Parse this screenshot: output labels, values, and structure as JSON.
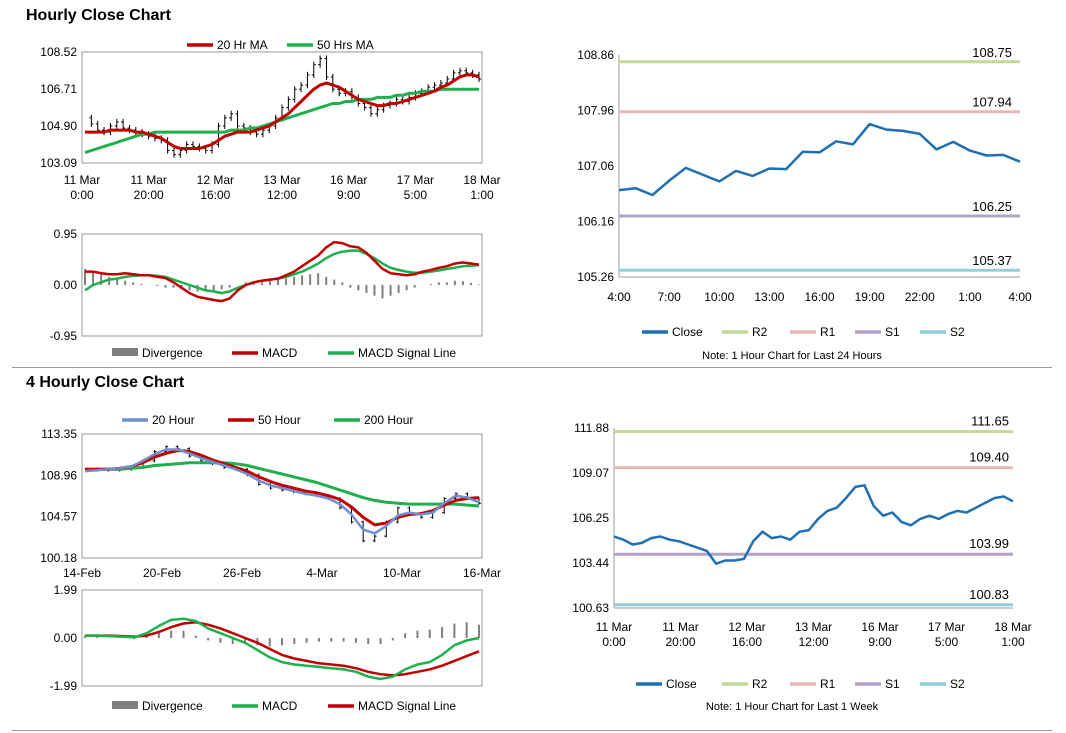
{
  "sections": {
    "hourly_title": "Hourly Close Chart",
    "four_hourly_title": "4 Hourly Close Chart"
  },
  "colors": {
    "red": "#c00000",
    "green": "#1fb04d",
    "blue_ma": "#6f8fcf",
    "blue_close": "#1f6fb2",
    "r2": "#c4d79b",
    "r1": "#e6b9b8",
    "s1": "#b3a2c7",
    "s2": "#92cddc",
    "divergence": "#7f7f7f"
  },
  "chart_data": [
    {
      "id": "hourly-price",
      "type": "line",
      "title": "",
      "ylim": [
        103.09,
        108.52
      ],
      "yticks": [
        "108.52",
        "106.71",
        "104.90",
        "103.09"
      ],
      "xticks": [
        [
          "11 Mar",
          "0:00"
        ],
        [
          "11 Mar",
          "20:00"
        ],
        [
          "12 Mar",
          "16:00"
        ],
        [
          "13 Mar",
          "12:00"
        ],
        [
          "16 Mar",
          "9:00"
        ],
        [
          "17 Mar",
          "5:00"
        ],
        [
          "18 Mar",
          "1:00"
        ]
      ],
      "legend": [
        "20 Hr MA",
        "50 Hrs MA"
      ],
      "price": [
        105.3,
        105.0,
        104.7,
        104.6,
        104.9,
        105.1,
        104.8,
        104.7,
        104.6,
        104.5,
        104.4,
        104.3,
        104.2,
        103.7,
        103.5,
        103.7,
        104.0,
        103.9,
        103.8,
        103.7,
        104.0,
        104.9,
        105.3,
        105.5,
        104.9,
        104.8,
        104.6,
        104.5,
        104.7,
        104.9,
        105.3,
        105.8,
        106.2,
        106.7,
        106.9,
        107.4,
        107.9,
        108.2,
        107.3,
        106.7,
        106.5,
        106.6,
        106.3,
        106.0,
        105.8,
        105.5,
        105.7,
        105.9,
        106.0,
        106.2,
        106.1,
        106.3,
        106.5,
        106.6,
        106.8,
        106.9,
        107.0,
        107.2,
        107.5,
        107.6,
        107.5,
        107.4,
        107.2
      ],
      "ma20": [
        104.6,
        104.6,
        104.6,
        104.6,
        104.7,
        104.7,
        104.7,
        104.7,
        104.6,
        104.6,
        104.5,
        104.4,
        104.3,
        104.1,
        103.9,
        103.8,
        103.8,
        103.8,
        103.8,
        103.9,
        104.0,
        104.2,
        104.4,
        104.5,
        104.6,
        104.6,
        104.6,
        104.7,
        104.8,
        104.9,
        105.1,
        105.3,
        105.5,
        105.8,
        106.1,
        106.4,
        106.7,
        106.9,
        107.0,
        106.9,
        106.8,
        106.6,
        106.4,
        106.2,
        106.1,
        106.0,
        105.9,
        105.9,
        106.0,
        106.0,
        106.1,
        106.2,
        106.3,
        106.4,
        106.5,
        106.6,
        106.8,
        106.9,
        107.1,
        107.3,
        107.4,
        107.4,
        107.3
      ],
      "ma50": [
        103.6,
        103.7,
        103.8,
        103.9,
        104.0,
        104.1,
        104.2,
        104.3,
        104.4,
        104.5,
        104.5,
        104.6,
        104.6,
        104.6,
        104.6,
        104.6,
        104.6,
        104.6,
        104.6,
        104.6,
        104.6,
        104.6,
        104.6,
        104.7,
        104.7,
        104.7,
        104.8,
        104.8,
        104.9,
        105.0,
        105.1,
        105.2,
        105.3,
        105.4,
        105.5,
        105.6,
        105.7,
        105.8,
        105.9,
        106.0,
        106.0,
        106.1,
        106.1,
        106.2,
        106.2,
        106.2,
        106.3,
        106.3,
        106.3,
        106.4,
        106.4,
        106.5,
        106.5,
        106.6,
        106.6,
        106.6,
        106.7,
        106.7,
        106.7,
        106.7,
        106.7,
        106.7,
        106.7
      ]
    },
    {
      "id": "hourly-macd",
      "type": "line",
      "ylim": [
        -0.95,
        0.95
      ],
      "yticks": [
        "0.95",
        "0.00",
        "-0.95"
      ],
      "legend": [
        "Divergence",
        "MACD",
        "MACD Signal Line"
      ],
      "macd": [
        0.25,
        0.25,
        0.22,
        0.2,
        0.2,
        0.22,
        0.2,
        0.18,
        0.18,
        0.15,
        0.13,
        0.05,
        -0.05,
        -0.15,
        -0.22,
        -0.25,
        -0.28,
        -0.3,
        -0.25,
        -0.1,
        0.0,
        0.05,
        0.08,
        0.1,
        0.12,
        0.18,
        0.25,
        0.35,
        0.45,
        0.55,
        0.7,
        0.8,
        0.78,
        0.72,
        0.7,
        0.6,
        0.45,
        0.3,
        0.22,
        0.2,
        0.18,
        0.2,
        0.25,
        0.28,
        0.32,
        0.35,
        0.4,
        0.42,
        0.4,
        0.38
      ],
      "signal": [
        -0.1,
        0.0,
        0.05,
        0.1,
        0.12,
        0.15,
        0.17,
        0.18,
        0.18,
        0.17,
        0.15,
        0.1,
        0.05,
        0.0,
        -0.05,
        -0.1,
        -0.12,
        -0.15,
        -0.12,
        -0.05,
        0.0,
        0.05,
        0.08,
        0.1,
        0.12,
        0.15,
        0.2,
        0.25,
        0.32,
        0.4,
        0.5,
        0.58,
        0.62,
        0.64,
        0.64,
        0.58,
        0.5,
        0.4,
        0.32,
        0.28,
        0.25,
        0.23,
        0.23,
        0.25,
        0.27,
        0.3,
        0.32,
        0.35,
        0.36,
        0.37
      ],
      "divergence": [
        0.3,
        0.25,
        0.2,
        0.15,
        0.1,
        0.08,
        0.05,
        0.02,
        0.0,
        -0.02,
        -0.05,
        -0.05,
        -0.08,
        -0.1,
        -0.12,
        -0.12,
        -0.1,
        -0.08,
        -0.05,
        0.0,
        0.05,
        0.05,
        0.05,
        0.08,
        0.1,
        0.12,
        0.15,
        0.18,
        0.2,
        0.22,
        0.15,
        0.1,
        0.05,
        -0.05,
        -0.1,
        -0.15,
        -0.2,
        -0.25,
        -0.2,
        -0.15,
        -0.1,
        -0.05,
        0.0,
        0.02,
        0.05,
        0.05,
        0.08,
        0.07,
        0.04,
        0.01
      ]
    },
    {
      "id": "hourly-close-levels",
      "type": "line",
      "ylim": [
        105.26,
        108.86
      ],
      "yticks": [
        "108.86",
        "107.96",
        "107.06",
        "106.16",
        "105.26"
      ],
      "xticks": [
        "4:00",
        "7:00",
        "10:00",
        "13:00",
        "16:00",
        "19:00",
        "22:00",
        "1:00",
        "4:00"
      ],
      "close": [
        106.67,
        106.7,
        106.59,
        106.82,
        107.03,
        106.92,
        106.81,
        106.98,
        106.9,
        107.02,
        107.01,
        107.29,
        107.28,
        107.46,
        107.41,
        107.74,
        107.65,
        107.63,
        107.58,
        107.33,
        107.45,
        107.31,
        107.23,
        107.24,
        107.13
      ],
      "levels": [
        {
          "name": "R2",
          "value": 108.75,
          "label": "108.75"
        },
        {
          "name": "R1",
          "value": 107.94,
          "label": "107.94"
        },
        {
          "name": "S1",
          "value": 106.25,
          "label": "106.25"
        },
        {
          "name": "S2",
          "value": 105.37,
          "label": "105.37"
        }
      ],
      "legend": [
        "Close",
        "R2",
        "R1",
        "S1",
        "S2"
      ],
      "note": "Note: 1 Hour Chart for Last 24 Hours"
    },
    {
      "id": "four-hourly-price",
      "type": "line",
      "ylim": [
        100.18,
        113.35
      ],
      "yticks": [
        "113.35",
        "108.96",
        "104.57",
        "100.18"
      ],
      "xticks": [
        "14-Feb",
        "20-Feb",
        "26-Feb",
        "4-Mar",
        "10-Mar",
        "16-Mar"
      ],
      "legend": [
        "20 Hour",
        "50 Hour",
        "200 Hour"
      ],
      "price": [
        109.5,
        109.6,
        109.5,
        109.6,
        109.8,
        110.5,
        111.5,
        112.0,
        111.8,
        111.0,
        110.5,
        110.2,
        109.8,
        109.6,
        109.0,
        108.0,
        107.6,
        107.4,
        107.2,
        107.0,
        106.8,
        106.5,
        105.5,
        104.0,
        102.0,
        102.5,
        104.0,
        105.5,
        104.8,
        104.5,
        105.0,
        106.5,
        107.0,
        106.5,
        106.0
      ],
      "ma20": [
        109.4,
        109.5,
        109.6,
        109.7,
        109.9,
        110.5,
        111.2,
        111.7,
        111.7,
        111.3,
        110.8,
        110.4,
        110.0,
        109.6,
        109.1,
        108.4,
        107.9,
        107.6,
        107.3,
        107.0,
        106.8,
        106.5,
        105.9,
        104.8,
        103.2,
        102.8,
        103.6,
        104.7,
        105.0,
        104.8,
        105.0,
        106.0,
        106.8,
        106.6,
        106.1
      ],
      "ma50": [
        109.6,
        109.6,
        109.6,
        109.7,
        109.9,
        110.3,
        110.9,
        111.3,
        111.6,
        111.5,
        111.1,
        110.6,
        110.2,
        109.8,
        109.4,
        108.8,
        108.3,
        107.9,
        107.6,
        107.3,
        107.1,
        106.8,
        106.4,
        105.6,
        104.5,
        103.7,
        103.9,
        104.5,
        104.8,
        104.9,
        105.2,
        105.8,
        106.3,
        106.5,
        106.6
      ],
      "ma200": [
        109.6,
        109.6,
        109.6,
        109.6,
        109.7,
        109.8,
        110.0,
        110.1,
        110.2,
        110.3,
        110.3,
        110.3,
        110.3,
        110.2,
        110.0,
        109.7,
        109.4,
        109.1,
        108.8,
        108.5,
        108.2,
        107.8,
        107.4,
        107.0,
        106.6,
        106.3,
        106.1,
        106.0,
        105.9,
        105.9,
        105.9,
        105.9,
        105.9,
        105.8,
        105.7
      ]
    },
    {
      "id": "four-hourly-macd",
      "type": "line",
      "ylim": [
        -1.99,
        1.99
      ],
      "yticks": [
        "1.99",
        "0.00",
        "-1.99"
      ],
      "legend": [
        "Divergence",
        "MACD",
        "MACD Signal Line"
      ],
      "macd": [
        0.1,
        0.1,
        0.08,
        0.05,
        0.03,
        0.2,
        0.5,
        0.75,
        0.8,
        0.7,
        0.4,
        0.2,
        0.0,
        -0.2,
        -0.5,
        -0.8,
        -1.0,
        -1.1,
        -1.15,
        -1.2,
        -1.25,
        -1.3,
        -1.4,
        -1.6,
        -1.7,
        -1.6,
        -1.3,
        -1.1,
        -1.0,
        -0.7,
        -0.3,
        -0.1,
        0.0
      ],
      "signal": [
        0.1,
        0.1,
        0.1,
        0.08,
        0.06,
        0.1,
        0.25,
        0.45,
        0.6,
        0.65,
        0.55,
        0.4,
        0.2,
        0.0,
        -0.2,
        -0.45,
        -0.7,
        -0.85,
        -0.95,
        -1.05,
        -1.1,
        -1.15,
        -1.25,
        -1.4,
        -1.5,
        -1.55,
        -1.5,
        -1.4,
        -1.3,
        -1.15,
        -0.95,
        -0.75,
        -0.55
      ],
      "divergence": [
        0.1,
        0.05,
        0.0,
        0.0,
        -0.05,
        0.1,
        0.25,
        0.3,
        0.3,
        0.1,
        -0.1,
        -0.2,
        -0.25,
        -0.2,
        -0.3,
        -0.35,
        -0.3,
        -0.25,
        -0.2,
        -0.15,
        -0.15,
        -0.15,
        -0.2,
        -0.25,
        -0.25,
        -0.1,
        0.2,
        0.3,
        0.35,
        0.45,
        0.6,
        0.65,
        0.55
      ]
    },
    {
      "id": "four-hourly-close-levels",
      "type": "line",
      "ylim": [
        100.63,
        111.88
      ],
      "yticks": [
        "111.88",
        "109.07",
        "106.25",
        "103.44",
        "100.63"
      ],
      "xticks": [
        [
          "11 Mar",
          "0:00"
        ],
        [
          "11 Mar",
          "20:00"
        ],
        [
          "12 Mar",
          "16:00"
        ],
        [
          "13 Mar",
          "12:00"
        ],
        [
          "16 Mar",
          "9:00"
        ],
        [
          "17 Mar",
          "5:00"
        ],
        [
          "18 Mar",
          "1:00"
        ]
      ],
      "close": [
        105.1,
        104.9,
        104.6,
        104.7,
        105.0,
        105.1,
        104.9,
        104.8,
        104.6,
        104.4,
        104.2,
        103.4,
        103.6,
        103.6,
        103.7,
        104.8,
        105.4,
        105.0,
        105.1,
        104.9,
        105.4,
        105.5,
        106.2,
        106.7,
        106.9,
        107.5,
        108.2,
        108.3,
        107.0,
        106.4,
        106.6,
        106.0,
        105.8,
        106.2,
        106.4,
        106.2,
        106.5,
        106.7,
        106.6,
        106.9,
        107.2,
        107.5,
        107.6,
        107.3
      ],
      "levels": [
        {
          "name": "R2",
          "value": 111.65,
          "label": "111.65"
        },
        {
          "name": "R1",
          "value": 109.4,
          "label": "109.40"
        },
        {
          "name": "S1",
          "value": 103.99,
          "label": "103.99"
        },
        {
          "name": "S2",
          "value": 100.83,
          "label": "100.83"
        }
      ],
      "legend": [
        "Close",
        "R2",
        "R1",
        "S1",
        "S2"
      ],
      "note": "Note: 1 Hour Chart for Last 1 Week"
    }
  ]
}
